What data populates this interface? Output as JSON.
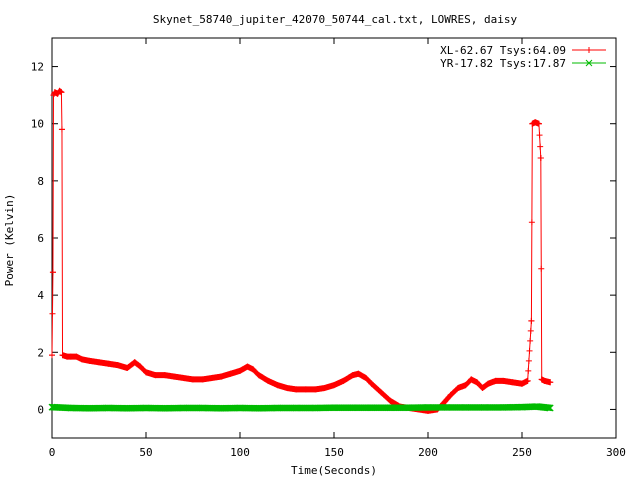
{
  "chart_data": {
    "type": "line",
    "title": "Skynet_58740_jupiter_42070_50744_cal.txt, LOWRES, daisy",
    "xlabel": "Time(Seconds)",
    "ylabel": "Power (Kelvin)",
    "xlim": [
      0,
      300
    ],
    "ylim": [
      -1,
      13
    ],
    "xticks": [
      0,
      50,
      100,
      150,
      200,
      250,
      300
    ],
    "yticks": [
      0,
      2,
      4,
      6,
      8,
      10,
      12
    ],
    "grid": false,
    "legend_position": "top-right",
    "series": [
      {
        "name": "XL-62.67 Tsys:64.09",
        "color": "#ff0000",
        "marker": "plus",
        "points": [
          [
            0,
            1.9
          ],
          [
            0.5,
            4.8
          ],
          [
            0.8,
            11.0
          ],
          [
            1.5,
            11.1
          ],
          [
            3,
            11.05
          ],
          [
            4,
            11.15
          ],
          [
            5,
            11.1
          ],
          [
            5.3,
            9.8
          ],
          [
            5.6,
            1.9
          ],
          [
            8,
            1.85
          ],
          [
            10,
            1.85
          ],
          [
            13,
            1.85
          ],
          [
            16,
            1.75
          ],
          [
            20,
            1.7
          ],
          [
            25,
            1.65
          ],
          [
            30,
            1.6
          ],
          [
            35,
            1.55
          ],
          [
            40,
            1.45
          ],
          [
            44,
            1.65
          ],
          [
            47,
            1.5
          ],
          [
            50,
            1.3
          ],
          [
            55,
            1.2
          ],
          [
            60,
            1.2
          ],
          [
            65,
            1.15
          ],
          [
            70,
            1.1
          ],
          [
            75,
            1.05
          ],
          [
            80,
            1.05
          ],
          [
            85,
            1.1
          ],
          [
            90,
            1.15
          ],
          [
            95,
            1.25
          ],
          [
            100,
            1.35
          ],
          [
            104,
            1.5
          ],
          [
            107,
            1.4
          ],
          [
            110,
            1.2
          ],
          [
            115,
            1.0
          ],
          [
            120,
            0.85
          ],
          [
            125,
            0.75
          ],
          [
            130,
            0.7
          ],
          [
            135,
            0.7
          ],
          [
            140,
            0.7
          ],
          [
            145,
            0.75
          ],
          [
            150,
            0.85
          ],
          [
            155,
            1.0
          ],
          [
            160,
            1.2
          ],
          [
            163,
            1.25
          ],
          [
            167,
            1.1
          ],
          [
            170,
            0.9
          ],
          [
            175,
            0.6
          ],
          [
            180,
            0.3
          ],
          [
            185,
            0.1
          ],
          [
            190,
            0.05
          ],
          [
            195,
            0.0
          ],
          [
            200,
            -0.05
          ],
          [
            205,
            0.0
          ],
          [
            208,
            0.2
          ],
          [
            212,
            0.5
          ],
          [
            216,
            0.75
          ],
          [
            220,
            0.85
          ],
          [
            223,
            1.05
          ],
          [
            226,
            0.95
          ],
          [
            229,
            0.75
          ],
          [
            232,
            0.9
          ],
          [
            236,
            1.0
          ],
          [
            240,
            1.0
          ],
          [
            245,
            0.95
          ],
          [
            250,
            0.9
          ],
          [
            253,
            1.0
          ],
          [
            255,
            3.1
          ],
          [
            255.5,
            10.0
          ],
          [
            257,
            10.05
          ],
          [
            259,
            10.0
          ],
          [
            260,
            8.8
          ],
          [
            260.5,
            1.05
          ],
          [
            262,
            1.0
          ],
          [
            265,
            0.95
          ]
        ]
      },
      {
        "name": "YR-17.82 Tsys:17.87",
        "color": "#00bb00",
        "marker": "cross",
        "points": [
          [
            0,
            0.08
          ],
          [
            10,
            0.05
          ],
          [
            20,
            0.04
          ],
          [
            30,
            0.05
          ],
          [
            40,
            0.04
          ],
          [
            50,
            0.05
          ],
          [
            60,
            0.04
          ],
          [
            70,
            0.05
          ],
          [
            80,
            0.05
          ],
          [
            90,
            0.04
          ],
          [
            100,
            0.05
          ],
          [
            110,
            0.04
          ],
          [
            120,
            0.05
          ],
          [
            130,
            0.05
          ],
          [
            140,
            0.05
          ],
          [
            150,
            0.06
          ],
          [
            160,
            0.06
          ],
          [
            170,
            0.06
          ],
          [
            180,
            0.06
          ],
          [
            190,
            0.06
          ],
          [
            200,
            0.07
          ],
          [
            210,
            0.07
          ],
          [
            220,
            0.07
          ],
          [
            230,
            0.07
          ],
          [
            240,
            0.07
          ],
          [
            250,
            0.08
          ],
          [
            258,
            0.1
          ],
          [
            265,
            0.05
          ]
        ]
      }
    ]
  }
}
